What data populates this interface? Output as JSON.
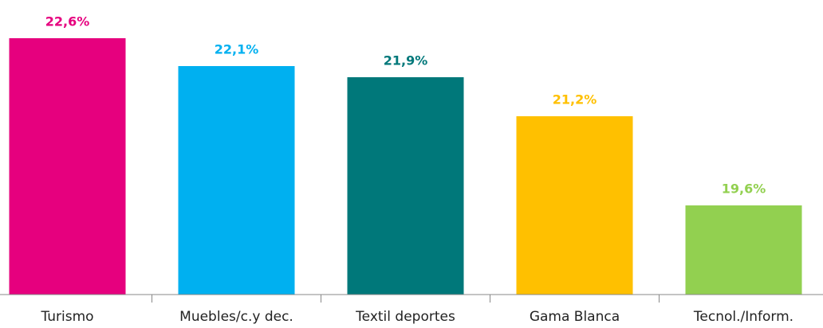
{
  "chart_data": {
    "type": "bar",
    "categories": [
      "Turismo",
      "Muebles/c.y dec.",
      "Textil deportes",
      "Gama Blanca",
      "Tecnol./Inform."
    ],
    "values": [
      22.6,
      22.1,
      21.9,
      21.2,
      19.6
    ],
    "value_labels": [
      "22,6%",
      "22,1%",
      "21,9%",
      "21,2%",
      "19,6%"
    ],
    "colors": [
      "#e6007e",
      "#00b0f0",
      "#00787a",
      "#ffc000",
      "#92d050"
    ],
    "ylim": [
      18,
      23
    ]
  }
}
